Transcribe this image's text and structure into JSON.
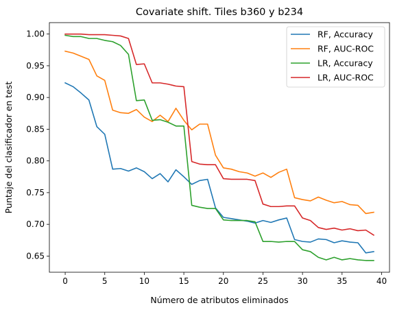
{
  "chart_data": {
    "type": "line",
    "title": "Covariate shift. Tiles b360 y b234",
    "xlabel": "Número de atributos eliminados",
    "ylabel": "Puntaje  del clasificador en test",
    "xlim": [
      -2,
      41
    ],
    "ylim": [
      0.6245,
      1.018
    ],
    "xticks": [
      0,
      5,
      10,
      15,
      20,
      25,
      30,
      35,
      40
    ],
    "yticks": [
      0.65,
      0.7,
      0.75,
      0.8,
      0.85,
      0.9,
      0.95,
      1.0
    ],
    "xtick_labels": [
      "0",
      "5",
      "10",
      "15",
      "20",
      "25",
      "30",
      "35",
      "40"
    ],
    "ytick_labels": [
      "0.65",
      "0.70",
      "0.75",
      "0.80",
      "0.85",
      "0.90",
      "0.95",
      "1.00"
    ],
    "grid": false,
    "legend_position": "top-right",
    "x": [
      0,
      1,
      2,
      3,
      4,
      5,
      6,
      7,
      8,
      9,
      10,
      11,
      12,
      13,
      14,
      15,
      16,
      17,
      18,
      19,
      20,
      21,
      22,
      23,
      24,
      25,
      26,
      27,
      28,
      29,
      30,
      31,
      32,
      33,
      34,
      35,
      36,
      37,
      38,
      39
    ],
    "series": [
      {
        "name": "RF, Accuracy",
        "color": "#1f77b4",
        "values": [
          0.923,
          0.917,
          0.907,
          0.896,
          0.854,
          0.842,
          0.787,
          0.788,
          0.784,
          0.789,
          0.783,
          0.772,
          0.78,
          0.767,
          0.786,
          0.775,
          0.763,
          0.769,
          0.771,
          0.726,
          0.711,
          0.709,
          0.707,
          0.705,
          0.702,
          0.706,
          0.703,
          0.707,
          0.71,
          0.676,
          0.673,
          0.672,
          0.677,
          0.676,
          0.671,
          0.674,
          0.672,
          0.671,
          0.655,
          0.657
        ]
      },
      {
        "name": "RF, AUC-ROC",
        "color": "#ff7f0e",
        "values": [
          0.973,
          0.97,
          0.965,
          0.96,
          0.934,
          0.927,
          0.88,
          0.876,
          0.875,
          0.881,
          0.869,
          0.862,
          0.872,
          0.862,
          0.883,
          0.864,
          0.849,
          0.858,
          0.858,
          0.809,
          0.789,
          0.787,
          0.783,
          0.781,
          0.776,
          0.781,
          0.774,
          0.782,
          0.787,
          0.742,
          0.739,
          0.737,
          0.743,
          0.738,
          0.734,
          0.736,
          0.731,
          0.73,
          0.717,
          0.719
        ]
      },
      {
        "name": "LR, Accuracy",
        "color": "#2ca02c",
        "values": [
          0.998,
          0.996,
          0.996,
          0.993,
          0.993,
          0.99,
          0.988,
          0.982,
          0.968,
          0.895,
          0.896,
          0.864,
          0.865,
          0.861,
          0.855,
          0.855,
          0.73,
          0.727,
          0.725,
          0.725,
          0.707,
          0.706,
          0.706,
          0.706,
          0.704,
          0.673,
          0.673,
          0.672,
          0.673,
          0.673,
          0.66,
          0.657,
          0.648,
          0.644,
          0.648,
          0.644,
          0.646,
          0.644,
          0.643,
          0.643
        ]
      },
      {
        "name": "LR, AUC-ROC",
        "color": "#d62728",
        "values": [
          1.0,
          1.0,
          1.0,
          0.999,
          0.999,
          0.999,
          0.998,
          0.997,
          0.993,
          0.952,
          0.953,
          0.923,
          0.923,
          0.921,
          0.918,
          0.917,
          0.799,
          0.795,
          0.794,
          0.794,
          0.772,
          0.771,
          0.771,
          0.771,
          0.769,
          0.732,
          0.728,
          0.728,
          0.729,
          0.729,
          0.71,
          0.706,
          0.695,
          0.692,
          0.694,
          0.691,
          0.693,
          0.69,
          0.691,
          0.683
        ]
      }
    ]
  }
}
